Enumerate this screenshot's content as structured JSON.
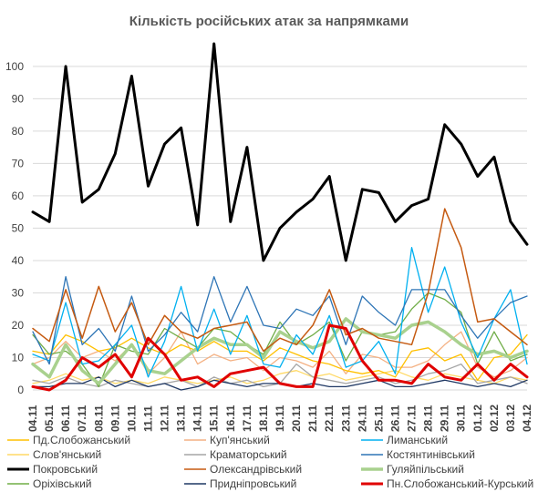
{
  "chart_data": {
    "type": "line",
    "title": "Кількість російських атак за напрямками",
    "xlabel": "",
    "ylabel": "",
    "ylim": [
      0,
      107
    ],
    "yticks": [
      0,
      10,
      20,
      30,
      40,
      50,
      60,
      70,
      80,
      90,
      100
    ],
    "grid": "horizontal",
    "legend_position": "bottom",
    "x_labels": [
      "04.11",
      "05.11",
      "06.11",
      "07.11",
      "08.11",
      "09.11",
      "10.11",
      "11.11",
      "12.11",
      "13.11",
      "14.11",
      "15.11",
      "16.11",
      "17.11",
      "18.11",
      "19.11",
      "20.11",
      "21.11",
      "22.11",
      "23.11",
      "24.11",
      "25.11",
      "26.11",
      "27.11",
      "28.11",
      "29.11",
      "30.11",
      "01.12",
      "02.12",
      "03.12",
      "04.12"
    ],
    "series": [
      {
        "name": "Пд.Слобожанський",
        "color": "#FFC000",
        "width": 1.3,
        "values": [
          12,
          11,
          17,
          15,
          12,
          13,
          16,
          13,
          11,
          14,
          12,
          15,
          12,
          12,
          9,
          13,
          11,
          9,
          8,
          6,
          5,
          6,
          4,
          12,
          13,
          9,
          11,
          3,
          10,
          11,
          17
        ]
      },
      {
        "name": "Куп'янський",
        "color": "#F4B183",
        "width": 1.3,
        "values": [
          8,
          10,
          15,
          10,
          12,
          9,
          14,
          5,
          10,
          18,
          8,
          11,
          9,
          10,
          6,
          10,
          9,
          7,
          12,
          5,
          11,
          10,
          7,
          7,
          9,
          14,
          18,
          7,
          4,
          6,
          10
        ]
      },
      {
        "name": "Лиманський",
        "color": "#00B0F0",
        "width": 1.3,
        "values": [
          11,
          9,
          27,
          8,
          9,
          14,
          20,
          4,
          15,
          32,
          12,
          25,
          11,
          23,
          8,
          7,
          17,
          11,
          23,
          7,
          9,
          15,
          5,
          44,
          24,
          38,
          21,
          10,
          22,
          31,
          8
        ]
      },
      {
        "name": "Слов'янський",
        "color": "#FFD966",
        "width": 1.3,
        "values": [
          2,
          3,
          5,
          3,
          4,
          2,
          3,
          2,
          4,
          3,
          2,
          3,
          4,
          2,
          3,
          5,
          6,
          4,
          5,
          3,
          4,
          5,
          6,
          4,
          3,
          5,
          4,
          3,
          2,
          4,
          3
        ]
      },
      {
        "name": "Краматорський",
        "color": "#A6A6A6",
        "width": 1.3,
        "values": [
          3,
          2,
          4,
          2,
          1,
          3,
          2,
          1,
          2,
          3,
          1,
          4,
          2,
          3,
          1,
          2,
          8,
          4,
          3,
          2,
          3,
          4,
          2,
          3,
          5,
          6,
          8,
          2,
          3,
          4,
          2
        ]
      },
      {
        "name": "Костянтинівський",
        "color": "#2E75B6",
        "width": 1.3,
        "values": [
          18,
          8,
          35,
          14,
          19,
          12,
          29,
          12,
          17,
          24,
          18,
          35,
          21,
          32,
          20,
          19,
          25,
          23,
          29,
          14,
          29,
          24,
          20,
          31,
          31,
          31,
          23,
          16,
          22,
          27,
          29
        ]
      },
      {
        "name": "Покровський",
        "color": "#000000",
        "width": 3,
        "values": [
          55,
          52,
          100,
          58,
          62,
          73,
          97,
          63,
          76,
          81,
          51,
          107,
          52,
          75,
          40,
          50,
          55,
          59,
          66,
          40,
          62,
          61,
          52,
          57,
          59,
          82,
          76,
          66,
          72,
          52,
          45
        ]
      },
      {
        "name": "Олександрівський",
        "color": "#C55A11",
        "width": 1.5,
        "values": [
          19,
          15,
          31,
          16,
          32,
          18,
          27,
          14,
          23,
          18,
          16,
          19,
          20,
          21,
          12,
          16,
          14,
          20,
          31,
          17,
          19,
          16,
          15,
          14,
          30,
          56,
          44,
          21,
          22,
          18,
          14
        ]
      },
      {
        "name": "Гуляйпільський",
        "color": "#A9D18E",
        "width": 3.5,
        "values": [
          8,
          4,
          14,
          6,
          2,
          8,
          14,
          6,
          5,
          9,
          13,
          16,
          14,
          14,
          10,
          18,
          15,
          13,
          15,
          22,
          18,
          17,
          16,
          20,
          21,
          18,
          14,
          11,
          12,
          10,
          12
        ]
      },
      {
        "name": "Оріхівський",
        "color": "#70AD47",
        "width": 1.3,
        "values": [
          17,
          11,
          12,
          8,
          1,
          14,
          12,
          11,
          19,
          16,
          13,
          19,
          18,
          14,
          11,
          21,
          14,
          17,
          21,
          9,
          18,
          17,
          18,
          25,
          30,
          28,
          24,
          8,
          18,
          9,
          11
        ]
      },
      {
        "name": "Придніпровський",
        "color": "#1F3864",
        "width": 1.3,
        "values": [
          1,
          1,
          2,
          2,
          4,
          1,
          3,
          1,
          2,
          0,
          1,
          3,
          2,
          1,
          2,
          2,
          1,
          2,
          1,
          1,
          2,
          3,
          1,
          1,
          2,
          3,
          2,
          1,
          2,
          1,
          3
        ]
      },
      {
        "name": "Пн.Слобожанський-Курський",
        "color": "#E00000",
        "width": 3,
        "values": [
          1,
          0,
          3,
          10,
          7,
          11,
          4,
          16,
          11,
          3,
          4,
          1,
          5,
          6,
          7,
          2,
          1,
          1,
          20,
          19,
          9,
          3,
          3,
          2,
          8,
          4,
          3,
          8,
          3,
          8,
          4
        ]
      }
    ]
  }
}
